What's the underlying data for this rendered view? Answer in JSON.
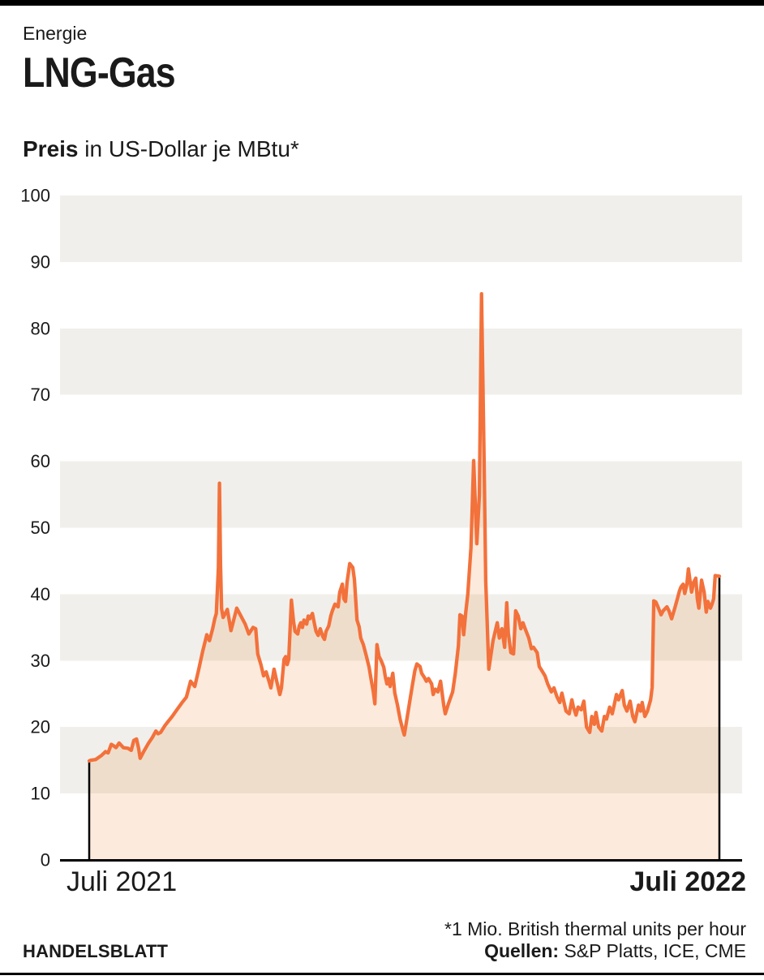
{
  "header": {
    "kicker": "Energie",
    "title": "LNG-Gas",
    "subtitle_bold": "Preis",
    "subtitle_rest": " in US-Dollar je MBtu*"
  },
  "footer": {
    "footnote": "*1 Mio. British thermal units per hour",
    "sources_label": "Quellen:",
    "sources_rest": " S&P Platts, ICE, CME",
    "brand": "HANDELSBLATT"
  },
  "colors": {
    "line": "#f3713b",
    "area_fill": "#f08a3e",
    "area_opacity": 0.18,
    "band": "#f0efeb",
    "axis": "#000000",
    "text": "#1a1a1a"
  },
  "chart_data": {
    "type": "area",
    "title": "Preis in US-Dollar je MBtu*",
    "xlabel": "",
    "ylabel": "US-Dollar je MBtu",
    "x_axis": {
      "start_label": "Juli 2021",
      "end_label": "Juli 2022",
      "unit": "months since Juli 2021",
      "range": [
        0,
        12
      ]
    },
    "y_axis": {
      "range": [
        0,
        100
      ],
      "ticks": [
        0,
        10,
        20,
        30,
        40,
        50,
        60,
        70,
        80,
        90,
        100
      ],
      "gray_bands": [
        [
          10,
          20
        ],
        [
          30,
          40
        ],
        [
          50,
          60
        ],
        [
          70,
          80
        ],
        [
          90,
          100
        ]
      ]
    },
    "legend": "none",
    "grid": "banded",
    "series": [
      {
        "name": "LNG-Preis (USD/MBtu)",
        "points": [
          [
            0.0,
            14.9
          ],
          [
            0.03,
            15.0
          ],
          [
            0.12,
            15.1
          ],
          [
            0.23,
            15.7
          ],
          [
            0.31,
            16.3
          ],
          [
            0.36,
            16.1
          ],
          [
            0.42,
            17.4
          ],
          [
            0.46,
            17.2
          ],
          [
            0.51,
            16.9
          ],
          [
            0.57,
            17.6
          ],
          [
            0.65,
            16.9
          ],
          [
            0.74,
            16.8
          ],
          [
            0.8,
            16.5
          ],
          [
            0.85,
            18.0
          ],
          [
            0.9,
            18.2
          ],
          [
            0.94,
            16.8
          ],
          [
            0.97,
            15.3
          ],
          [
            1.05,
            16.5
          ],
          [
            1.13,
            17.6
          ],
          [
            1.2,
            18.4
          ],
          [
            1.27,
            19.4
          ],
          [
            1.31,
            19.0
          ],
          [
            1.36,
            19.2
          ],
          [
            1.44,
            20.2
          ],
          [
            1.5,
            20.8
          ],
          [
            1.58,
            21.6
          ],
          [
            1.67,
            22.6
          ],
          [
            1.76,
            23.6
          ],
          [
            1.85,
            24.5
          ],
          [
            1.93,
            26.9
          ],
          [
            2.01,
            26.1
          ],
          [
            2.08,
            28.5
          ],
          [
            2.16,
            31.4
          ],
          [
            2.24,
            33.9
          ],
          [
            2.29,
            33.0
          ],
          [
            2.35,
            34.8
          ],
          [
            2.39,
            36.3
          ],
          [
            2.42,
            37.1
          ],
          [
            2.46,
            44.0
          ],
          [
            2.48,
            56.7
          ],
          [
            2.5,
            44.5
          ],
          [
            2.52,
            37.8
          ],
          [
            2.55,
            36.5
          ],
          [
            2.63,
            37.7
          ],
          [
            2.7,
            34.5
          ],
          [
            2.81,
            37.9
          ],
          [
            2.89,
            36.7
          ],
          [
            2.97,
            35.5
          ],
          [
            3.04,
            34.0
          ],
          [
            3.12,
            35.0
          ],
          [
            3.17,
            34.8
          ],
          [
            3.21,
            31.0
          ],
          [
            3.27,
            29.4
          ],
          [
            3.32,
            27.7
          ],
          [
            3.37,
            28.3
          ],
          [
            3.43,
            26.7
          ],
          [
            3.46,
            25.9
          ],
          [
            3.49,
            27.3
          ],
          [
            3.52,
            28.7
          ],
          [
            3.57,
            26.9
          ],
          [
            3.63,
            24.9
          ],
          [
            3.66,
            25.9
          ],
          [
            3.71,
            30.2
          ],
          [
            3.74,
            30.6
          ],
          [
            3.77,
            29.4
          ],
          [
            3.8,
            30.2
          ],
          [
            3.85,
            39.1
          ],
          [
            3.89,
            35.9
          ],
          [
            3.92,
            34.4
          ],
          [
            3.97,
            34.0
          ],
          [
            4.0,
            35.2
          ],
          [
            4.03,
            35.7
          ],
          [
            4.06,
            35.0
          ],
          [
            4.09,
            36.1
          ],
          [
            4.14,
            35.5
          ],
          [
            4.17,
            36.7
          ],
          [
            4.2,
            36.3
          ],
          [
            4.25,
            37.1
          ],
          [
            4.29,
            35.5
          ],
          [
            4.32,
            34.4
          ],
          [
            4.36,
            33.8
          ],
          [
            4.4,
            34.8
          ],
          [
            4.45,
            33.6
          ],
          [
            4.48,
            33.2
          ],
          [
            4.51,
            34.4
          ],
          [
            4.56,
            35.2
          ],
          [
            4.6,
            36.7
          ],
          [
            4.63,
            37.5
          ],
          [
            4.68,
            38.5
          ],
          [
            4.74,
            38.1
          ],
          [
            4.77,
            40.3
          ],
          [
            4.82,
            41.5
          ],
          [
            4.85,
            39.3
          ],
          [
            4.88,
            38.9
          ],
          [
            4.91,
            41.8
          ],
          [
            4.96,
            44.6
          ],
          [
            5.02,
            44.0
          ],
          [
            5.05,
            42.2
          ],
          [
            5.1,
            36.1
          ],
          [
            5.14,
            35.1
          ],
          [
            5.17,
            33.4
          ],
          [
            5.22,
            32.4
          ],
          [
            5.28,
            30.6
          ],
          [
            5.33,
            29.0
          ],
          [
            5.37,
            27.1
          ],
          [
            5.41,
            25.3
          ],
          [
            5.44,
            23.5
          ],
          [
            5.48,
            32.4
          ],
          [
            5.52,
            30.6
          ],
          [
            5.56,
            30.0
          ],
          [
            5.61,
            29.0
          ],
          [
            5.64,
            27.5
          ],
          [
            5.67,
            26.5
          ],
          [
            5.7,
            27.3
          ],
          [
            5.73,
            26.1
          ],
          [
            5.78,
            28.1
          ],
          [
            5.82,
            25.1
          ],
          [
            5.87,
            23.3
          ],
          [
            5.92,
            21.2
          ],
          [
            5.97,
            19.6
          ],
          [
            6.0,
            18.8
          ],
          [
            6.05,
            21.2
          ],
          [
            6.1,
            23.7
          ],
          [
            6.15,
            26.1
          ],
          [
            6.2,
            28.5
          ],
          [
            6.24,
            29.5
          ],
          [
            6.3,
            29.1
          ],
          [
            6.33,
            28.1
          ],
          [
            6.38,
            27.5
          ],
          [
            6.42,
            26.9
          ],
          [
            6.46,
            27.3
          ],
          [
            6.52,
            26.5
          ],
          [
            6.55,
            24.9
          ],
          [
            6.59,
            25.7
          ],
          [
            6.64,
            25.3
          ],
          [
            6.69,
            26.9
          ],
          [
            6.75,
            23.3
          ],
          [
            6.78,
            22.0
          ],
          [
            6.84,
            23.5
          ],
          [
            6.92,
            25.3
          ],
          [
            6.97,
            28.0
          ],
          [
            7.03,
            32.2
          ],
          [
            7.06,
            36.9
          ],
          [
            7.1,
            36.7
          ],
          [
            7.13,
            33.9
          ],
          [
            7.17,
            37.3
          ],
          [
            7.21,
            40.0
          ],
          [
            7.27,
            47.0
          ],
          [
            7.32,
            60.1
          ],
          [
            7.38,
            47.6
          ],
          [
            7.43,
            55.0
          ],
          [
            7.47,
            85.2
          ],
          [
            7.52,
            60.0
          ],
          [
            7.55,
            42.0
          ],
          [
            7.61,
            28.7
          ],
          [
            7.69,
            33.0
          ],
          [
            7.77,
            35.7
          ],
          [
            7.81,
            33.4
          ],
          [
            7.86,
            34.8
          ],
          [
            7.91,
            32.0
          ],
          [
            7.95,
            38.7
          ],
          [
            7.98,
            34.2
          ],
          [
            8.03,
            31.2
          ],
          [
            8.08,
            31.0
          ],
          [
            8.12,
            37.5
          ],
          [
            8.17,
            36.7
          ],
          [
            8.22,
            34.8
          ],
          [
            8.26,
            35.7
          ],
          [
            8.31,
            34.6
          ],
          [
            8.37,
            33.4
          ],
          [
            8.42,
            31.8
          ],
          [
            8.46,
            32.0
          ],
          [
            8.53,
            31.2
          ],
          [
            8.57,
            29.1
          ],
          [
            8.62,
            28.5
          ],
          [
            8.68,
            27.7
          ],
          [
            8.73,
            26.5
          ],
          [
            8.8,
            25.3
          ],
          [
            8.85,
            25.9
          ],
          [
            8.91,
            24.5
          ],
          [
            8.96,
            23.7
          ],
          [
            9.0,
            25.1
          ],
          [
            9.03,
            24.1
          ],
          [
            9.08,
            22.4
          ],
          [
            9.14,
            22.0
          ],
          [
            9.19,
            24.1
          ],
          [
            9.22,
            23.0
          ],
          [
            9.27,
            21.8
          ],
          [
            9.31,
            23.0
          ],
          [
            9.37,
            22.6
          ],
          [
            9.42,
            23.9
          ],
          [
            9.47,
            20.0
          ],
          [
            9.53,
            19.2
          ],
          [
            9.57,
            21.6
          ],
          [
            9.62,
            20.4
          ],
          [
            9.65,
            22.2
          ],
          [
            9.7,
            20.0
          ],
          [
            9.76,
            19.4
          ],
          [
            9.81,
            21.6
          ],
          [
            9.85,
            21.2
          ],
          [
            9.91,
            23.0
          ],
          [
            9.96,
            22.0
          ],
          [
            10.04,
            24.9
          ],
          [
            10.08,
            24.1
          ],
          [
            10.15,
            25.5
          ],
          [
            10.19,
            23.3
          ],
          [
            10.24,
            22.4
          ],
          [
            10.3,
            23.9
          ],
          [
            10.35,
            21.6
          ],
          [
            10.39,
            20.8
          ],
          [
            10.46,
            23.3
          ],
          [
            10.5,
            22.4
          ],
          [
            10.53,
            23.7
          ],
          [
            10.58,
            21.6
          ],
          [
            10.63,
            22.4
          ],
          [
            10.69,
            24.1
          ],
          [
            10.72,
            26.0
          ],
          [
            10.75,
            39.0
          ],
          [
            10.79,
            38.8
          ],
          [
            10.84,
            37.9
          ],
          [
            10.89,
            36.9
          ],
          [
            10.93,
            37.5
          ],
          [
            11.0,
            38.1
          ],
          [
            11.04,
            37.5
          ],
          [
            11.09,
            36.3
          ],
          [
            11.15,
            37.9
          ],
          [
            11.2,
            39.3
          ],
          [
            11.24,
            40.5
          ],
          [
            11.27,
            41.1
          ],
          [
            11.31,
            41.5
          ],
          [
            11.34,
            40.1
          ],
          [
            11.38,
            41.5
          ],
          [
            11.41,
            43.8
          ],
          [
            11.47,
            40.3
          ],
          [
            11.51,
            41.8
          ],
          [
            11.55,
            42.4
          ],
          [
            11.58,
            39.3
          ],
          [
            11.61,
            37.9
          ],
          [
            11.66,
            42.1
          ],
          [
            11.71,
            40.3
          ],
          [
            11.75,
            37.3
          ],
          [
            11.78,
            38.9
          ],
          [
            11.83,
            37.9
          ],
          [
            11.86,
            38.5
          ],
          [
            11.89,
            39.3
          ],
          [
            11.92,
            42.8
          ],
          [
            12.0,
            42.7
          ]
        ]
      }
    ]
  }
}
